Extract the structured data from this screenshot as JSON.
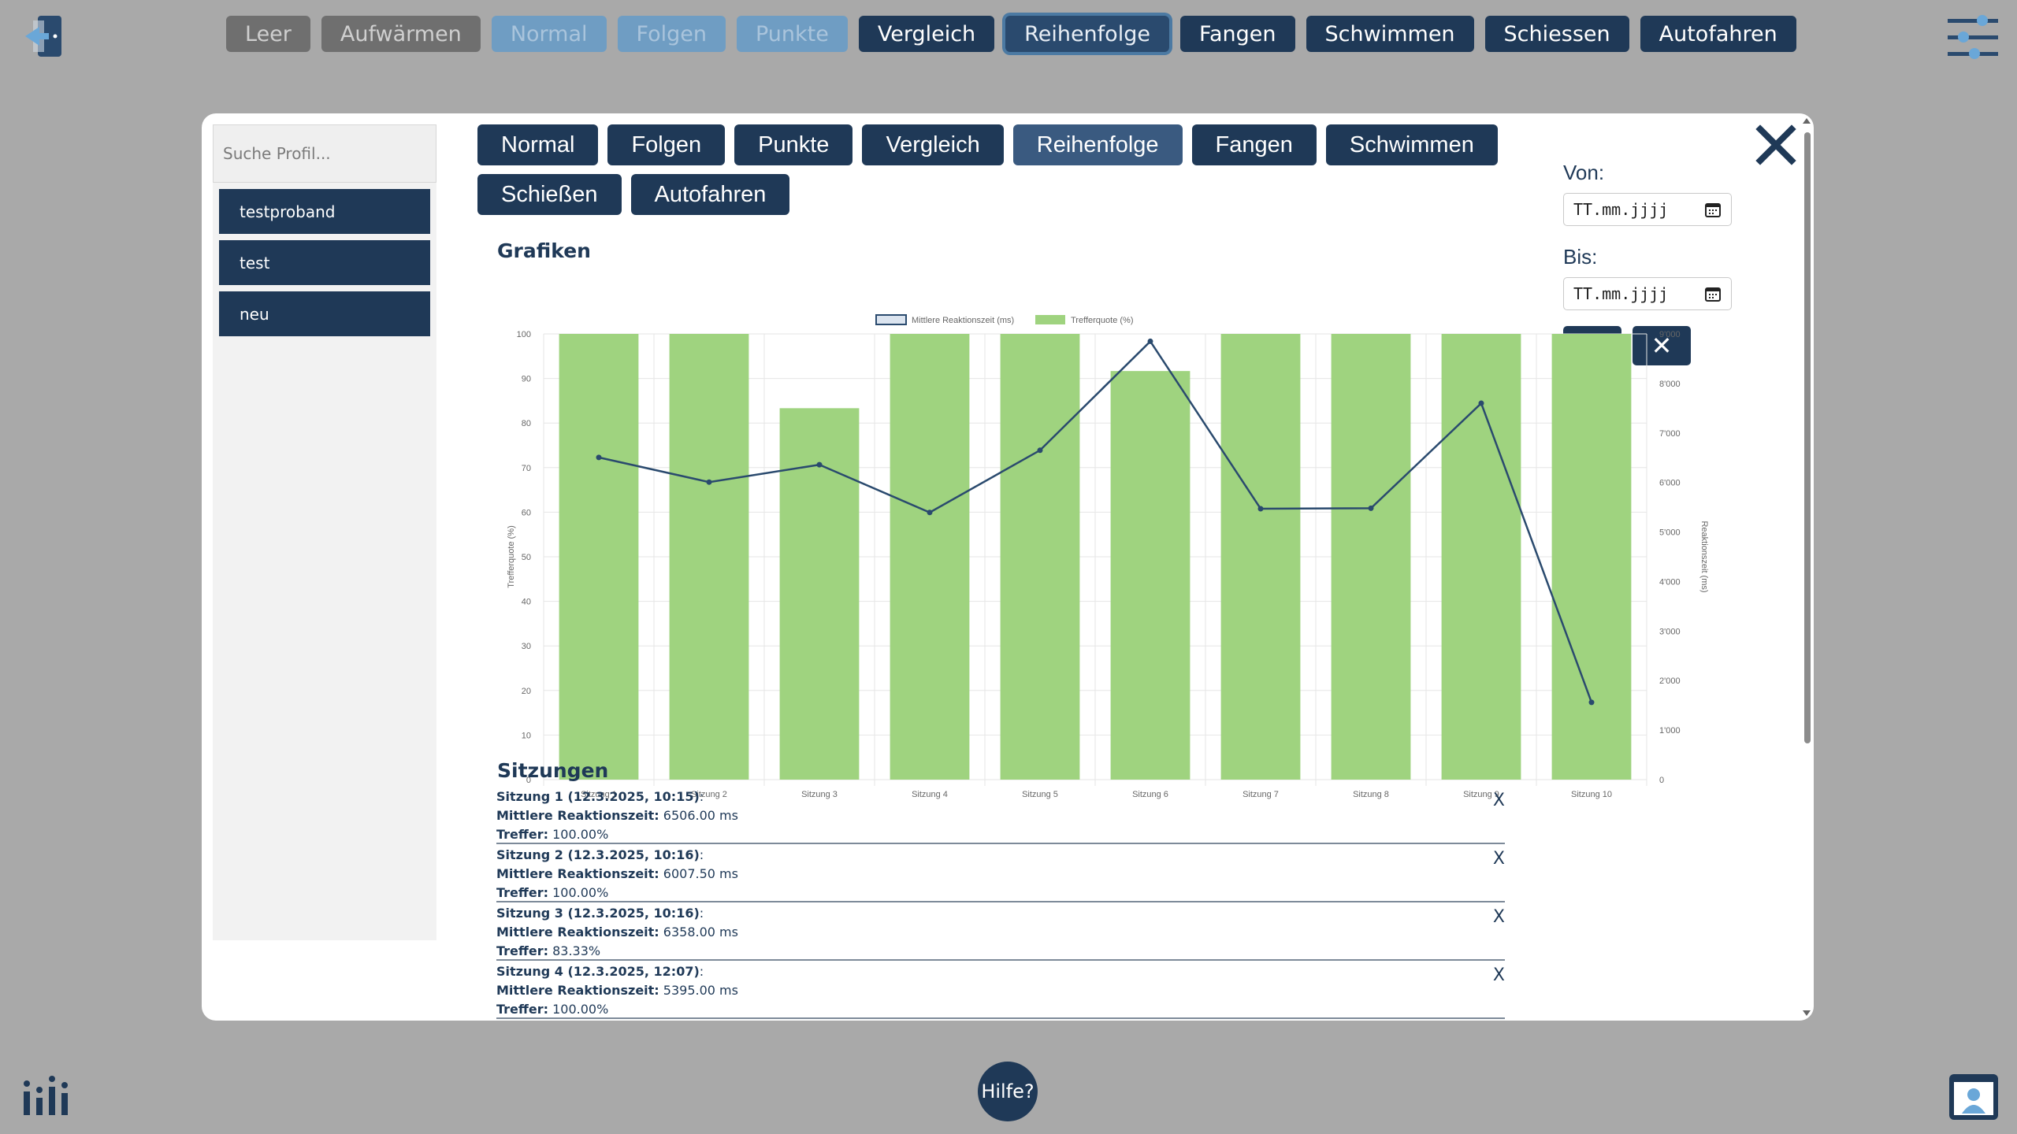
{
  "topnav": [
    {
      "label": "Leer",
      "state": "gray"
    },
    {
      "label": "Aufwärmen",
      "state": "gray"
    },
    {
      "label": "Normal",
      "state": "blue"
    },
    {
      "label": "Folgen",
      "state": "blue"
    },
    {
      "label": "Punkte",
      "state": "blue"
    },
    {
      "label": "Vergleich",
      "state": "dark"
    },
    {
      "label": "Reihenfolge",
      "state": "active"
    },
    {
      "label": "Fangen",
      "state": "dark"
    },
    {
      "label": "Schwimmen",
      "state": "dark"
    },
    {
      "label": "Schiessen",
      "state": "dark"
    },
    {
      "label": "Autofahren",
      "state": "dark"
    }
  ],
  "help": {
    "label": "Hilfe?"
  },
  "sidebar": {
    "search_placeholder": "Suche Profil...",
    "profiles": [
      "testproband",
      "test",
      "neu"
    ]
  },
  "tabs": [
    {
      "label": "Normal",
      "active": false
    },
    {
      "label": "Folgen",
      "active": false
    },
    {
      "label": "Punkte",
      "active": false
    },
    {
      "label": "Vergleich",
      "active": false
    },
    {
      "label": "Reihenfolge",
      "active": true
    },
    {
      "label": "Fangen",
      "active": false
    },
    {
      "label": "Schwimmen",
      "active": false
    },
    {
      "label": "Schießen",
      "active": false
    },
    {
      "label": "Autofahren",
      "active": false
    }
  ],
  "dates": {
    "from_label": "Von:",
    "to_label": "Bis:",
    "from_value": "TT.mm.jjjj",
    "to_value": "TT.mm.jjjj",
    "confirm": "✓",
    "cancel": "✕"
  },
  "graphs_title": "Grafiken",
  "sessions_title": "Sitzungen",
  "chart_data": {
    "type": "bar",
    "categories": [
      "Sitzung 1",
      "Sitzung 2",
      "Sitzung 3",
      "Sitzung 4",
      "Sitzung 5",
      "Sitzung 6",
      "Sitzung 7",
      "Sitzung 8",
      "Sitzung 9",
      "Sitzung 10"
    ],
    "series": [
      {
        "name": "Mittlere Reaktionszeit (ms)",
        "type": "line",
        "axis": "right",
        "color": "#2a4a6e",
        "values": [
          6506,
          6007.5,
          6358,
          5395,
          6650,
          8850,
          5470,
          5480,
          7600,
          1560
        ]
      },
      {
        "name": "Trefferquote (%)",
        "type": "bar",
        "axis": "left",
        "color": "#9fd37f",
        "values": [
          100,
          100,
          83.33,
          100,
          100,
          91.67,
          100,
          100,
          100,
          100
        ]
      }
    ],
    "ylabel": "Trefferquote (%)",
    "y2label": "Reaktionszeit (ms)",
    "ylim": [
      0,
      100
    ],
    "y2lim": [
      0,
      9000
    ],
    "yticks": [
      "0",
      "10",
      "20",
      "30",
      "40",
      "50",
      "60",
      "70",
      "80",
      "90",
      "100"
    ],
    "y2ticks": [
      "0",
      "1'000",
      "2'000",
      "3'000",
      "4'000",
      "5'000",
      "6'000",
      "7'000",
      "8'000",
      "9'000"
    ],
    "grid": true,
    "legend": "top-center"
  },
  "sessions": [
    {
      "title": "Sitzung 1 (12.3.2025, 10:15)",
      "rt_label": "Mittlere Reaktionszeit:",
      "rt": "6506.00 ms",
      "hit_label": "Treffer:",
      "hit": "100.00%"
    },
    {
      "title": "Sitzung 2 (12.3.2025, 10:16)",
      "rt_label": "Mittlere Reaktionszeit:",
      "rt": "6007.50 ms",
      "hit_label": "Treffer:",
      "hit": "100.00%"
    },
    {
      "title": "Sitzung 3 (12.3.2025, 10:16)",
      "rt_label": "Mittlere Reaktionszeit:",
      "rt": "6358.00 ms",
      "hit_label": "Treffer:",
      "hit": "83.33%"
    },
    {
      "title": "Sitzung 4 (12.3.2025, 12:07)",
      "rt_label": "Mittlere Reaktionszeit:",
      "rt": "5395.00 ms",
      "hit_label": "Treffer:",
      "hit": "100.00%"
    }
  ],
  "delete_label": "X"
}
